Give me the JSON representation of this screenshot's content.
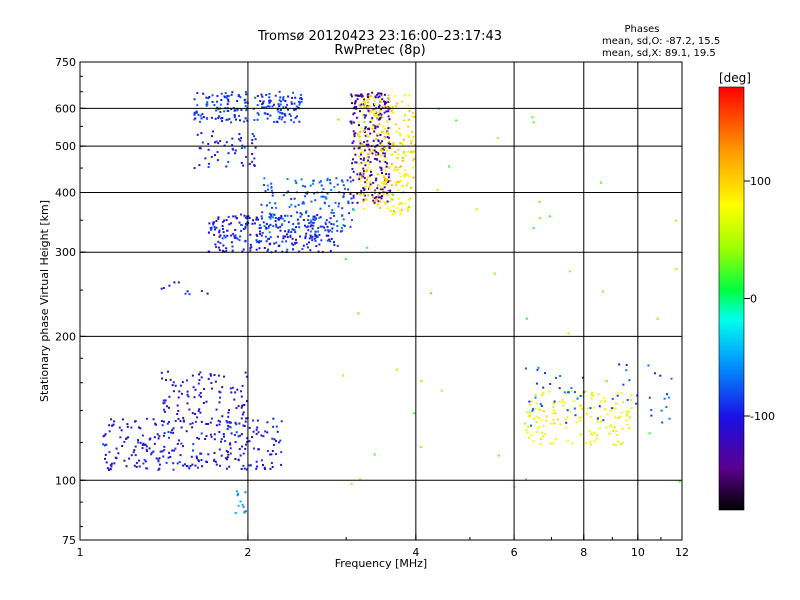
{
  "chart_data": {
    "type": "scatter",
    "title": "Tromsø 20120423 23:16:00–23:17:43",
    "subtitle": "RwPretec (8p)",
    "xlabel": "Frequency [MHz]",
    "ylabel": "Stationary phase Virtual Height [km]",
    "x_scale": "log",
    "y_scale": "log",
    "xlim": [
      1,
      12
    ],
    "ylim": [
      75,
      750
    ],
    "grid": true,
    "x_tick_labels": [
      "1",
      "2",
      "4",
      "6",
      "8",
      "10",
      "12"
    ],
    "y_tick_labels": [
      "750",
      "600",
      "500",
      "400",
      "300",
      "200",
      "100",
      "75"
    ],
    "x_grid_values": [
      2,
      4,
      6,
      8,
      10
    ],
    "y_grid_values": [
      100,
      200,
      300,
      400,
      500,
      600
    ],
    "phases_info": {
      "title": "Phases",
      "line_o": "mean, sd,O: -87.2, 15.5",
      "line_x": "mean, sd,X:  89.1, 19.5"
    },
    "colorbar": {
      "label": "[deg]",
      "range": [
        -180,
        180
      ],
      "ticks": [
        "100",
        "0",
        "-100"
      ],
      "tick_values": [
        100,
        0,
        -100
      ]
    },
    "point_groups": [
      {
        "f": [
          1.6,
          2.5
        ],
        "h": [
          560,
          650
        ],
        "phase": -95,
        "n": 200
      },
      {
        "f": [
          1.6,
          2.1
        ],
        "h": [
          450,
          540
        ],
        "phase": -105,
        "n": 55
      },
      {
        "f": [
          1.7,
          2.9
        ],
        "h": [
          300,
          360
        ],
        "phase": -105,
        "n": 260
      },
      {
        "f": [
          2.1,
          3.1
        ],
        "h": [
          330,
          430
        ],
        "phase": -80,
        "n": 160
      },
      {
        "f": [
          3.05,
          3.6
        ],
        "h": [
          380,
          650
        ],
        "phase": -140,
        "n": 260
      },
      {
        "f": [
          3.15,
          4.0
        ],
        "h": [
          360,
          640
        ],
        "phase": 110,
        "n": 280
      },
      {
        "f": [
          1.1,
          2.3
        ],
        "h": [
          105,
          135
        ],
        "phase": -110,
        "n": 280
      },
      {
        "f": [
          1.4,
          2.0
        ],
        "h": [
          130,
          170
        ],
        "phase": -115,
        "n": 110
      },
      {
        "f": [
          1.9,
          2.0
        ],
        "h": [
          85,
          95
        ],
        "phase": -60,
        "n": 12
      },
      {
        "f": [
          6.3,
          9.8
        ],
        "h": [
          118,
          155
        ],
        "phase": 95,
        "n": 150
      },
      {
        "f": [
          6.3,
          11.5
        ],
        "h": [
          130,
          175
        ],
        "phase": -85,
        "n": 60
      },
      {
        "f": [
          1.4,
          1.7
        ],
        "h": [
          245,
          260
        ],
        "phase": -105,
        "n": 10
      },
      {
        "f": [
          2.8,
          12
        ],
        "h": [
          80,
          620
        ],
        "phase": 40,
        "n": 45
      }
    ]
  }
}
